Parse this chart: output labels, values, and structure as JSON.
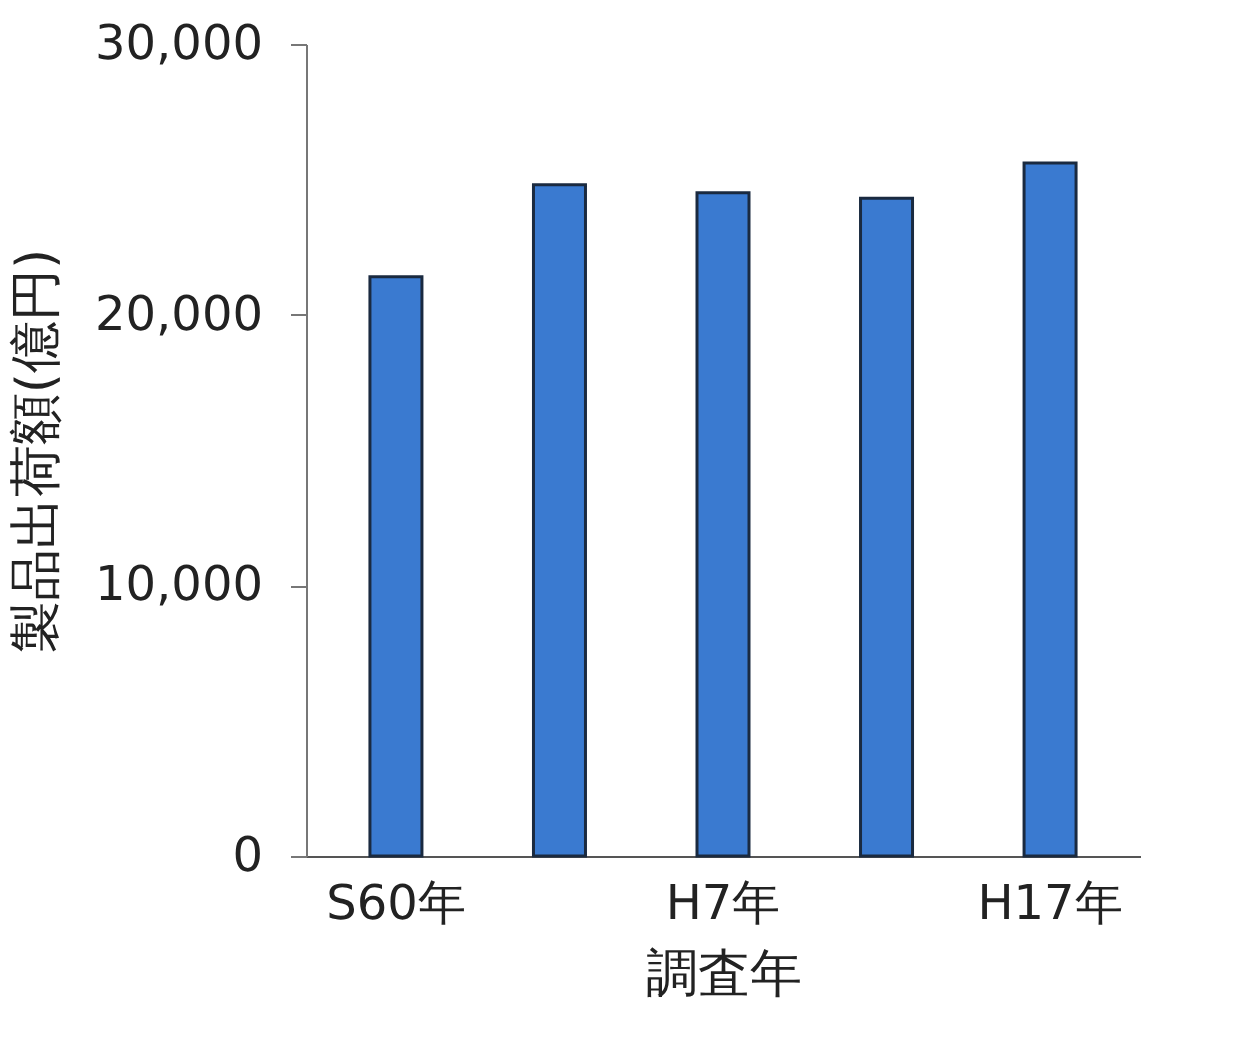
{
  "chart_data": {
    "type": "bar",
    "xlabel": "調査年",
    "ylabel": "製品出荷額(億円)",
    "categories": [
      "S60年",
      null,
      "H7年",
      null,
      "H17年"
    ],
    "values": [
      21400,
      24800,
      24500,
      24300,
      25600
    ],
    "color": "#3a7ad0",
    "ylim": [
      0,
      30000
    ],
    "yticks": [
      0,
      {
        "value": 10000,
        "label": "10,000"
      },
      {
        "value": 20000,
        "label": "20,000"
      },
      {
        "value": 30000,
        "label": "30,000"
      }
    ],
    "grid": false
  }
}
